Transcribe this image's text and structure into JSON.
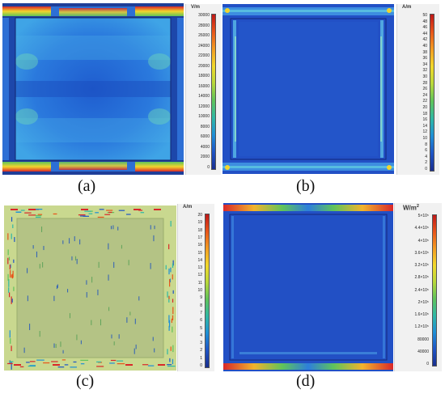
{
  "panels": [
    {
      "caption": "(a)",
      "unit": "V/m",
      "ticks": [
        "30000",
        "28000",
        "26000",
        "24000",
        "22000",
        "20000",
        "18000",
        "16000",
        "14000",
        "12000",
        "10000",
        "8000",
        "6000",
        "4000",
        "2000",
        "0"
      ]
    },
    {
      "caption": "(b)",
      "unit": "A/m",
      "ticks": [
        "50",
        "48",
        "46",
        "44",
        "42",
        "40",
        "38",
        "36",
        "34",
        "32",
        "30",
        "28",
        "26",
        "24",
        "22",
        "20",
        "18",
        "16",
        "14",
        "12",
        "10",
        "8",
        "6",
        "4",
        "2",
        "0"
      ]
    },
    {
      "caption": "(c)",
      "unit": "A/m",
      "ticks": [
        "20",
        "19",
        "18",
        "17",
        "16",
        "15",
        "14",
        "13",
        "12",
        "11",
        "10",
        "9",
        "8",
        "7",
        "6",
        "5",
        "4",
        "3",
        "2",
        "1",
        "0"
      ]
    },
    {
      "caption": "(d)",
      "unit": "W/m2",
      "ticks": [
        "5×10⁵",
        "4.4×10⁵",
        "4×10⁵",
        "3.6×10⁵",
        "3.2×10⁵",
        "2.8×10⁵",
        "2.4×10⁵",
        "2×10⁵",
        "1.6×10⁵",
        "1.2×10⁵",
        "80000",
        "40000",
        "0"
      ]
    }
  ],
  "colors": {
    "scale": [
      "#c01818",
      "#e8551a",
      "#f39c22",
      "#f1d82b",
      "#b8d83a",
      "#5fc35a",
      "#2fb8a5",
      "#1e8fd6",
      "#1e54c5",
      "#1a2f8f"
    ],
    "field_blue": "#2a63d0",
    "deep_blue": "#1e3fa8",
    "light_blue": "#4aa3e6",
    "cyan": "#5ed0e4",
    "green_bg": "#b7c585",
    "hot_red": "#d9282a",
    "hot_yellow": "#f2d52c"
  }
}
